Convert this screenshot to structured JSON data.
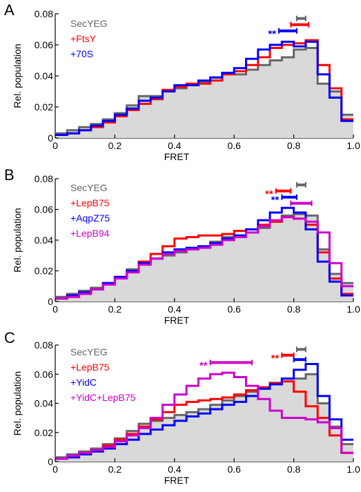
{
  "figure": {
    "panels": [
      "A",
      "B",
      "C"
    ]
  },
  "chart_data": [
    {
      "panel_label": "A",
      "type": "line",
      "style": "step-histogram",
      "xlabel": "FRET",
      "ylabel": "Rel. population",
      "xlim": [
        0,
        1.0
      ],
      "ylim": [
        0,
        0.08
      ],
      "x_ticks": [
        "0",
        "0.2",
        "0.4",
        "0.6",
        "0.8",
        "1.0"
      ],
      "y_ticks": [
        "0",
        "0.02",
        "0.04",
        "0.06",
        "0.08"
      ],
      "bin_edges": [
        0.0,
        0.04,
        0.08,
        0.12,
        0.16,
        0.2,
        0.24,
        0.28,
        0.32,
        0.36,
        0.4,
        0.44,
        0.48,
        0.52,
        0.56,
        0.6,
        0.64,
        0.68,
        0.72,
        0.76,
        0.8,
        0.84,
        0.88,
        0.92,
        0.96,
        1.0
      ],
      "series": [
        {
          "name": "SecYEG",
          "color": "#666666",
          "filled": true,
          "values": [
            0.003,
            0.005,
            0.007,
            0.009,
            0.012,
            0.016,
            0.021,
            0.027,
            0.027,
            0.03,
            0.032,
            0.034,
            0.036,
            0.039,
            0.042,
            0.041,
            0.044,
            0.047,
            0.05,
            0.052,
            0.057,
            0.058,
            0.035,
            0.03,
            0.015
          ],
          "marker": {
            "x_start": 0.81,
            "x_end": 0.84,
            "y": 0.077,
            "stars": ""
          }
        },
        {
          "name": "+FtsY",
          "color": "#ff0000",
          "filled": false,
          "values": [
            0.002,
            0.003,
            0.005,
            0.007,
            0.01,
            0.014,
            0.018,
            0.022,
            0.025,
            0.031,
            0.033,
            0.035,
            0.035,
            0.037,
            0.041,
            0.043,
            0.047,
            0.052,
            0.058,
            0.06,
            0.061,
            0.063,
            0.047,
            0.032,
            0.012
          ],
          "marker": {
            "x_start": 0.79,
            "x_end": 0.85,
            "y": 0.073,
            "stars": ""
          }
        },
        {
          "name": "+70S",
          "color": "#0000ff",
          "filled": false,
          "values": [
            0.002,
            0.003,
            0.005,
            0.008,
            0.011,
            0.015,
            0.019,
            0.024,
            0.026,
            0.03,
            0.034,
            0.034,
            0.037,
            0.039,
            0.042,
            0.045,
            0.051,
            0.057,
            0.06,
            0.062,
            0.059,
            0.062,
            0.041,
            0.026,
            0.011
          ],
          "marker": {
            "x_start": 0.75,
            "x_end": 0.81,
            "y": 0.069,
            "stars": "**"
          }
        }
      ]
    },
    {
      "panel_label": "B",
      "type": "line",
      "style": "step-histogram",
      "xlabel": "FRET",
      "ylabel": "Rel. population",
      "xlim": [
        0,
        1.0
      ],
      "ylim": [
        0,
        0.08
      ],
      "x_ticks": [
        "0",
        "0.2",
        "0.4",
        "0.6",
        "0.8",
        "1.0"
      ],
      "y_ticks": [
        "0",
        "0.02",
        "0.04",
        "0.06",
        "0.08"
      ],
      "bin_edges": [
        0.0,
        0.04,
        0.08,
        0.12,
        0.16,
        0.2,
        0.24,
        0.28,
        0.32,
        0.36,
        0.4,
        0.44,
        0.48,
        0.52,
        0.56,
        0.6,
        0.64,
        0.68,
        0.72,
        0.76,
        0.8,
        0.84,
        0.88,
        0.92,
        0.96,
        1.0
      ],
      "series": [
        {
          "name": "SecYEG",
          "color": "#666666",
          "filled": true,
          "values": [
            0.003,
            0.005,
            0.007,
            0.009,
            0.012,
            0.016,
            0.021,
            0.026,
            0.028,
            0.03,
            0.032,
            0.034,
            0.036,
            0.039,
            0.042,
            0.043,
            0.045,
            0.048,
            0.052,
            0.056,
            0.057,
            0.056,
            0.034,
            0.018,
            0.012
          ],
          "marker": {
            "x_start": 0.81,
            "x_end": 0.84,
            "y": 0.076,
            "stars": ""
          }
        },
        {
          "name": "+LepB75",
          "color": "#ff0000",
          "filled": false,
          "values": [
            0.002,
            0.003,
            0.005,
            0.008,
            0.012,
            0.016,
            0.02,
            0.026,
            0.031,
            0.036,
            0.041,
            0.042,
            0.043,
            0.043,
            0.044,
            0.046,
            0.047,
            0.05,
            0.052,
            0.055,
            0.054,
            0.05,
            0.032,
            0.015,
            0.005
          ],
          "marker": {
            "x_start": 0.74,
            "x_end": 0.79,
            "y": 0.072,
            "stars": "**"
          }
        },
        {
          "name": "+AqpZ75",
          "color": "#0000ff",
          "filled": false,
          "values": [
            0.002,
            0.004,
            0.006,
            0.008,
            0.012,
            0.016,
            0.02,
            0.025,
            0.028,
            0.032,
            0.034,
            0.035,
            0.036,
            0.038,
            0.041,
            0.043,
            0.047,
            0.053,
            0.058,
            0.061,
            0.058,
            0.047,
            0.026,
            0.013,
            0.004
          ],
          "marker": {
            "x_start": 0.76,
            "x_end": 0.81,
            "y": 0.068,
            "stars": "**"
          }
        },
        {
          "name": "+LepB94",
          "color": "#cc00cc",
          "filled": false,
          "values": [
            0.002,
            0.003,
            0.005,
            0.008,
            0.011,
            0.015,
            0.019,
            0.024,
            0.028,
            0.031,
            0.033,
            0.034,
            0.035,
            0.037,
            0.04,
            0.042,
            0.045,
            0.049,
            0.053,
            0.055,
            0.054,
            0.052,
            0.045,
            0.025,
            0.01
          ],
          "marker": {
            "x_start": 0.79,
            "x_end": 0.86,
            "y": 0.064,
            "stars": ""
          }
        }
      ]
    },
    {
      "panel_label": "C",
      "type": "line",
      "style": "step-histogram",
      "xlabel": "FRET",
      "ylabel": "Rel. population",
      "xlim": [
        0,
        1.0
      ],
      "ylim": [
        0,
        0.08
      ],
      "x_ticks": [
        "0",
        "0.2",
        "0.4",
        "0.6",
        "0.8",
        "1.0"
      ],
      "y_ticks": [
        "0",
        "0.02",
        "0.04",
        "0.06",
        "0.08"
      ],
      "bin_edges": [
        0.0,
        0.04,
        0.08,
        0.12,
        0.16,
        0.2,
        0.24,
        0.28,
        0.32,
        0.36,
        0.4,
        0.44,
        0.48,
        0.52,
        0.56,
        0.6,
        0.64,
        0.68,
        0.72,
        0.76,
        0.8,
        0.84,
        0.88,
        0.92,
        0.96,
        1.0
      ],
      "series": [
        {
          "name": "SecYEG",
          "color": "#666666",
          "filled": true,
          "values": [
            0.003,
            0.005,
            0.007,
            0.009,
            0.012,
            0.016,
            0.021,
            0.026,
            0.028,
            0.03,
            0.032,
            0.034,
            0.036,
            0.039,
            0.042,
            0.045,
            0.048,
            0.051,
            0.054,
            0.057,
            0.057,
            0.06,
            0.04,
            0.024,
            0.012
          ],
          "marker": {
            "x_start": 0.81,
            "x_end": 0.84,
            "y": 0.077,
            "stars": ""
          }
        },
        {
          "name": "+LepB75",
          "color": "#ff0000",
          "filled": false,
          "values": [
            0.002,
            0.003,
            0.005,
            0.007,
            0.011,
            0.015,
            0.019,
            0.024,
            0.029,
            0.034,
            0.039,
            0.041,
            0.042,
            0.043,
            0.044,
            0.046,
            0.049,
            0.051,
            0.054,
            0.055,
            0.048,
            0.038,
            0.03,
            0.018,
            0.006
          ],
          "marker": {
            "x_start": 0.76,
            "x_end": 0.8,
            "y": 0.073,
            "stars": "**"
          }
        },
        {
          "name": "+YidC",
          "color": "#0000ff",
          "filled": false,
          "values": [
            0.002,
            0.003,
            0.005,
            0.007,
            0.009,
            0.012,
            0.015,
            0.019,
            0.022,
            0.025,
            0.028,
            0.031,
            0.033,
            0.036,
            0.039,
            0.041,
            0.045,
            0.05,
            0.053,
            0.057,
            0.063,
            0.067,
            0.045,
            0.029,
            0.015
          ],
          "marker": {
            "x_start": 0.8,
            "x_end": 0.84,
            "y": 0.07,
            "stars": ""
          }
        },
        {
          "name": "+YidC+LepB75",
          "color": "#cc00cc",
          "filled": false,
          "values": [
            0.002,
            0.004,
            0.006,
            0.008,
            0.01,
            0.014,
            0.018,
            0.023,
            0.03,
            0.039,
            0.046,
            0.052,
            0.057,
            0.06,
            0.061,
            0.058,
            0.052,
            0.043,
            0.035,
            0.03,
            0.03,
            0.029,
            0.027,
            0.023,
            0.006
          ],
          "marker": {
            "x_start": 0.52,
            "x_end": 0.66,
            "y": 0.068,
            "stars": "**"
          }
        }
      ]
    }
  ]
}
